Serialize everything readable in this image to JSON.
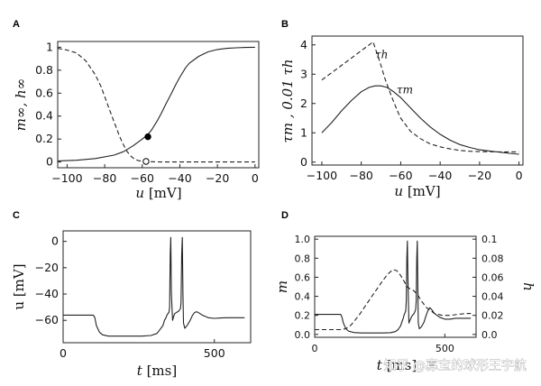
{
  "watermark": "知乎 @寡宝的球形王宇航",
  "chart_data": [
    {
      "panel": "A",
      "type": "line",
      "xlabel_var": "u",
      "xlabel_unit": " [mV]",
      "ylabel": "m∞, h∞",
      "xlim": [
        -105,
        2
      ],
      "ylim": [
        -0.05,
        1.05
      ],
      "xticks": [
        -100,
        -80,
        -60,
        -40,
        -20,
        0
      ],
      "xtick_labels": [
        "−100",
        "−80",
        "−60",
        "−40",
        "−20",
        "0"
      ],
      "yticks": [
        0,
        0.2,
        0.4,
        0.6,
        0.8,
        1
      ],
      "ytick_labels": [
        "0",
        "0.2",
        "0.4",
        "0.6",
        "0.8",
        "1"
      ],
      "series": [
        {
          "key": "m_inf",
          "style": "solid",
          "x": [
            -105,
            -95,
            -85,
            -75,
            -70,
            -65,
            -60,
            -57,
            -55,
            -52,
            -50,
            -47,
            -45,
            -42,
            -40,
            -37,
            -35,
            -30,
            -25,
            -20,
            -15,
            -10,
            -5,
            0
          ],
          "y": [
            0.01,
            0.015,
            0.03,
            0.06,
            0.09,
            0.14,
            0.2,
            0.24,
            0.28,
            0.36,
            0.42,
            0.52,
            0.58,
            0.68,
            0.74,
            0.82,
            0.86,
            0.92,
            0.96,
            0.98,
            0.99,
            0.995,
            0.998,
            1.0
          ]
        },
        {
          "key": "h_inf",
          "style": "dashed",
          "x": [
            -105,
            -100,
            -95,
            -90,
            -85,
            -82,
            -80,
            -78,
            -75,
            -72,
            -70,
            -68,
            -66,
            -64,
            -62,
            -60,
            -57,
            -55,
            -50,
            -40,
            -20,
            0
          ],
          "y": [
            0.99,
            0.975,
            0.95,
            0.88,
            0.76,
            0.66,
            0.57,
            0.48,
            0.35,
            0.22,
            0.15,
            0.09,
            0.05,
            0.025,
            0.012,
            0.006,
            0.004,
            0.003,
            0.0,
            0.0,
            0.0,
            0.0
          ]
        }
      ],
      "markers": [
        {
          "x": -57,
          "y": 0.22,
          "fill": "filled"
        },
        {
          "x": -58,
          "y": 0.005,
          "fill": "open"
        }
      ]
    },
    {
      "panel": "B",
      "type": "line",
      "xlabel_var": "u",
      "xlabel_unit": " [mV]",
      "ylabel": "τm , 0.01 τh",
      "xlim": [
        -105,
        2
      ],
      "ylim": [
        -0.1,
        4.3
      ],
      "xticks": [
        -100,
        -80,
        -60,
        -40,
        -20,
        0
      ],
      "xtick_labels": [
        "−100",
        "−80",
        "−60",
        "−40",
        "−20",
        "0"
      ],
      "yticks": [
        0,
        1,
        2,
        3,
        4
      ],
      "ytick_labels": [
        "0",
        "1",
        "2",
        "3",
        "4"
      ],
      "series": [
        {
          "key": "tau_m",
          "label": "τm",
          "style": "solid",
          "x": [
            -100,
            -95,
            -90,
            -85,
            -80,
            -76,
            -73,
            -70,
            -67,
            -64,
            -60,
            -55,
            -50,
            -45,
            -40,
            -35,
            -30,
            -25,
            -20,
            -15,
            -10,
            -5,
            0
          ],
          "y": [
            1.0,
            1.35,
            1.75,
            2.1,
            2.4,
            2.55,
            2.6,
            2.6,
            2.55,
            2.42,
            2.2,
            1.85,
            1.5,
            1.2,
            0.95,
            0.75,
            0.6,
            0.5,
            0.42,
            0.38,
            0.34,
            0.3,
            0.27
          ]
        },
        {
          "key": "tau_h",
          "label": "τh",
          "style": "dashed",
          "x": [
            -100,
            -95,
            -90,
            -85,
            -80,
            -76,
            -74,
            -72,
            -70,
            -68,
            -65,
            -62,
            -60,
            -55,
            -50,
            -45,
            -40,
            -35,
            -30,
            -25,
            -20,
            -10,
            0
          ],
          "y": [
            2.8,
            3.05,
            3.3,
            3.55,
            3.8,
            4.0,
            4.1,
            3.7,
            3.3,
            2.85,
            2.3,
            1.8,
            1.5,
            1.05,
            0.8,
            0.62,
            0.52,
            0.45,
            0.4,
            0.37,
            0.36,
            0.35,
            0.35
          ]
        }
      ],
      "annotations": [
        {
          "text": "τh",
          "x": -73,
          "y": 3.55
        },
        {
          "text": "τm",
          "x": -62,
          "y": 2.35
        }
      ]
    },
    {
      "panel": "C",
      "type": "line",
      "xlabel_var": "t",
      "xlabel_unit": " [ms]",
      "ylabel": "u [mV]",
      "xlim": [
        0,
        620
      ],
      "ylim": [
        -77,
        8
      ],
      "xticks": [
        0,
        500
      ],
      "xtick_labels": [
        "0",
        "500"
      ],
      "yticks": [
        0,
        -20,
        -40,
        -60
      ],
      "ytick_labels": [
        "0",
        "−20",
        "−40",
        "−60"
      ],
      "series": [
        {
          "key": "u",
          "style": "solid",
          "x": [
            0,
            100,
            105,
            110,
            120,
            130,
            150,
            180,
            220,
            260,
            290,
            310,
            320,
            330,
            335,
            340,
            343,
            346,
            350,
            352,
            354,
            356,
            358,
            362,
            368,
            375,
            382,
            388,
            390,
            392,
            394,
            396,
            398,
            402,
            410,
            420,
            428,
            435,
            442,
            450,
            460,
            480,
            500,
            520,
            540,
            560,
            580,
            600
          ],
          "y": [
            -56,
            -56,
            -58,
            -64,
            -69,
            -71,
            -72,
            -72,
            -72,
            -72,
            -71.5,
            -70,
            -67,
            -64,
            -60,
            -58,
            -56,
            -55,
            -54,
            -50,
            -10,
            3,
            -40,
            -60,
            -55,
            -54,
            -53,
            -51,
            -46,
            -10,
            3,
            -40,
            -62,
            -66,
            -64,
            -60,
            -56,
            -54,
            -53.5,
            -54.5,
            -56,
            -58,
            -58.5,
            -58.2,
            -58,
            -58,
            -58,
            -58
          ]
        }
      ]
    },
    {
      "panel": "D",
      "type": "line",
      "xlabel_var": "t",
      "xlabel_unit": " [ms]",
      "ylabel_left": "m",
      "ylabel_right": "h",
      "xlim": [
        0,
        620
      ],
      "ylim_left": [
        -0.03,
        1.03
      ],
      "ylim_right": [
        -0.003,
        0.103
      ],
      "xticks": [
        0,
        500
      ],
      "xtick_labels": [
        "0",
        "500"
      ],
      "yticks_left": [
        0,
        0.2,
        0.4,
        0.6,
        0.8,
        1
      ],
      "ytick_labels_left": [
        "0.0",
        "0.2",
        "0.4",
        "0.6",
        "0.8",
        "1.0"
      ],
      "yticks_right": [
        0,
        0.02,
        0.04,
        0.06,
        0.08,
        0.1
      ],
      "ytick_labels_right": [
        "0.0",
        "0.02",
        "0.04",
        "0.06",
        "0.08",
        "0.1"
      ],
      "series": [
        {
          "key": "m",
          "axis": "left",
          "style": "solid",
          "x": [
            0,
            100,
            105,
            110,
            120,
            130,
            150,
            180,
            220,
            260,
            290,
            310,
            320,
            330,
            335,
            340,
            343,
            346,
            350,
            352,
            354,
            356,
            358,
            362,
            368,
            375,
            382,
            388,
            390,
            392,
            394,
            396,
            398,
            402,
            410,
            420,
            428,
            435,
            442,
            450,
            460,
            480,
            500,
            520,
            540,
            560,
            580,
            600
          ],
          "y": [
            0.21,
            0.21,
            0.18,
            0.12,
            0.06,
            0.035,
            0.02,
            0.015,
            0.015,
            0.015,
            0.018,
            0.03,
            0.05,
            0.09,
            0.13,
            0.17,
            0.2,
            0.22,
            0.25,
            0.35,
            0.8,
            0.98,
            0.6,
            0.12,
            0.16,
            0.2,
            0.22,
            0.26,
            0.35,
            0.8,
            0.98,
            0.6,
            0.12,
            0.06,
            0.08,
            0.13,
            0.2,
            0.25,
            0.28,
            0.26,
            0.22,
            0.18,
            0.16,
            0.16,
            0.17,
            0.17,
            0.17,
            0.17
          ]
        },
        {
          "key": "h",
          "axis": "right",
          "style": "dashed",
          "x": [
            0,
            60,
            100,
            120,
            140,
            170,
            200,
            230,
            260,
            280,
            300,
            315,
            330,
            345,
            355,
            365,
            380,
            395,
            410,
            430,
            460,
            490,
            520,
            550,
            580,
            600
          ],
          "y": [
            0.005,
            0.005,
            0.005,
            0.006,
            0.01,
            0.02,
            0.032,
            0.044,
            0.056,
            0.063,
            0.068,
            0.067,
            0.062,
            0.055,
            0.05,
            0.048,
            0.046,
            0.042,
            0.035,
            0.028,
            0.022,
            0.02,
            0.02,
            0.021,
            0.022,
            0.022
          ]
        }
      ]
    }
  ]
}
